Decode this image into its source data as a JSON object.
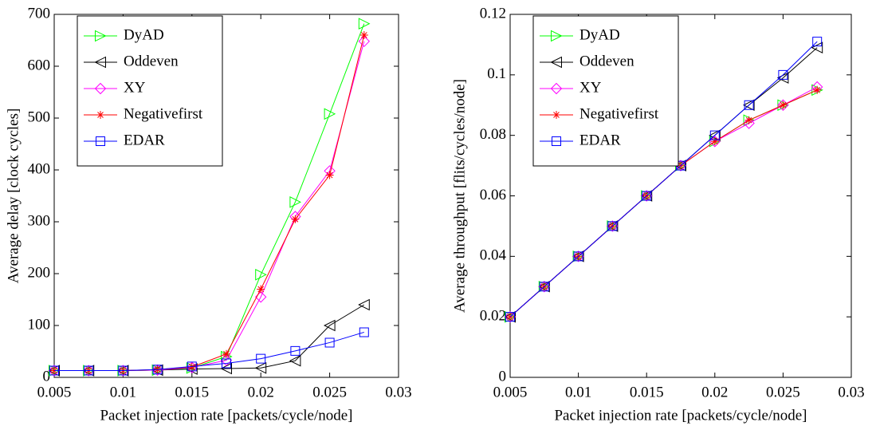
{
  "chart_data": [
    {
      "type": "line",
      "xlabel": "Packet injection rate [packets/cycle/node]",
      "ylabel": "Average delay [clock cycles]",
      "x": [
        0.005,
        0.0075,
        0.01,
        0.0125,
        0.015,
        0.0175,
        0.02,
        0.0225,
        0.025,
        0.0275
      ],
      "xlim": [
        0.005,
        0.03
      ],
      "xticks": [
        0.005,
        0.01,
        0.015,
        0.02,
        0.025,
        0.03
      ],
      "ylim": [
        0,
        700
      ],
      "yticks": [
        0,
        100,
        200,
        300,
        400,
        500,
        600,
        700
      ],
      "legend": "upper left",
      "series": [
        {
          "name": "DyAD",
          "color": "#00ff00",
          "marker": "triangle-right",
          "values": [
            13,
            13,
            13,
            14,
            18,
            40,
            198,
            338,
            508,
            682
          ]
        },
        {
          "name": "Oddeven",
          "color": "#000000",
          "marker": "triangle-left",
          "values": [
            13,
            13,
            13,
            14,
            16,
            17,
            18,
            32,
            100,
            140
          ]
        },
        {
          "name": "XY",
          "color": "#ff00ff",
          "marker": "diamond",
          "values": [
            13,
            13,
            13,
            14,
            19,
            33,
            155,
            310,
            398,
            648
          ]
        },
        {
          "name": "Negativefirst",
          "color": "#ff0000",
          "marker": "asterisk",
          "values": [
            13,
            13,
            13,
            15,
            20,
            45,
            170,
            305,
            390,
            660
          ]
        },
        {
          "name": "EDAR",
          "color": "#0000ff",
          "marker": "square",
          "values": [
            13,
            13,
            13,
            15,
            21,
            27,
            36,
            51,
            67,
            87
          ]
        }
      ]
    },
    {
      "type": "line",
      "xlabel": "Packet injection rate [packets/cycle/node]",
      "ylabel": "Average throughput [flits/cycles/node]",
      "x": [
        0.005,
        0.0075,
        0.01,
        0.0125,
        0.015,
        0.0175,
        0.02,
        0.0225,
        0.025,
        0.0275
      ],
      "xlim": [
        0.005,
        0.03
      ],
      "xticks": [
        0.005,
        0.01,
        0.015,
        0.02,
        0.025,
        0.03
      ],
      "ylim": [
        0,
        0.12
      ],
      "yticks": [
        0,
        0.02,
        0.04,
        0.06,
        0.08,
        0.1,
        0.12
      ],
      "legend": "upper left",
      "series": [
        {
          "name": "DyAD",
          "color": "#00ff00",
          "marker": "triangle-right",
          "values": [
            0.02,
            0.03,
            0.04,
            0.05,
            0.06,
            0.07,
            0.078,
            0.085,
            0.09,
            0.095
          ]
        },
        {
          "name": "Oddeven",
          "color": "#000000",
          "marker": "triangle-left",
          "values": [
            0.02,
            0.03,
            0.04,
            0.05,
            0.06,
            0.07,
            0.08,
            0.09,
            0.099,
            0.109
          ]
        },
        {
          "name": "XY",
          "color": "#ff00ff",
          "marker": "diamond",
          "values": [
            0.02,
            0.03,
            0.04,
            0.05,
            0.06,
            0.07,
            0.078,
            0.084,
            0.09,
            0.096
          ]
        },
        {
          "name": "Negativefirst",
          "color": "#ff0000",
          "marker": "asterisk",
          "values": [
            0.02,
            0.03,
            0.04,
            0.05,
            0.06,
            0.07,
            0.078,
            0.085,
            0.09,
            0.095
          ]
        },
        {
          "name": "EDAR",
          "color": "#0000ff",
          "marker": "square",
          "values": [
            0.02,
            0.03,
            0.04,
            0.05,
            0.06,
            0.07,
            0.08,
            0.09,
            0.1,
            0.111
          ]
        }
      ]
    }
  ]
}
